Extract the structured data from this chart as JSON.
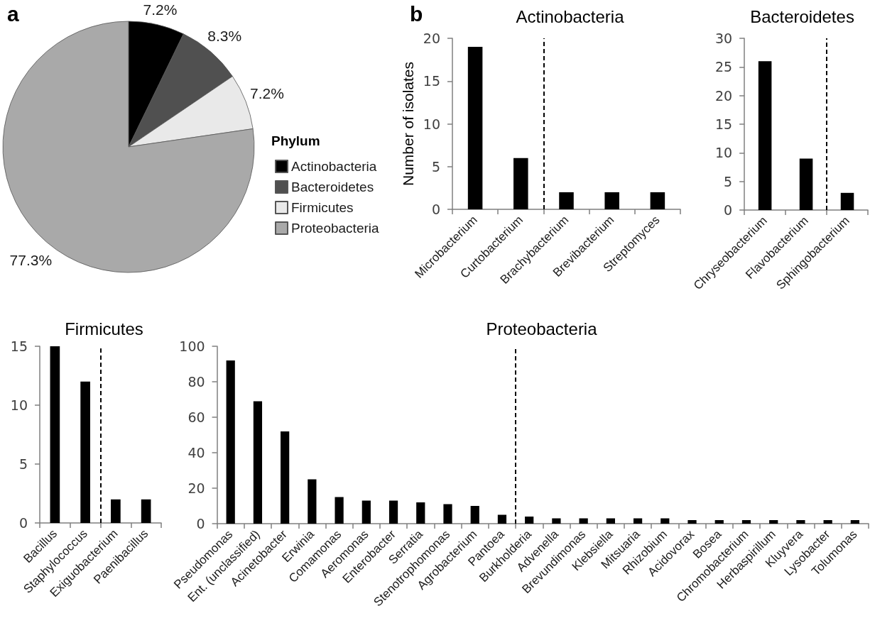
{
  "chart_data": [
    {
      "type": "pie",
      "categories": [
        "Actinobacteria",
        "Bacteroidetes",
        "Firmicutes",
        "Proteobacteria"
      ],
      "values": [
        7.2,
        8.3,
        7.2,
        77.3
      ],
      "colors": [
        "#000000",
        "#505050",
        "#e9e9e9",
        "#a9a9a9"
      ],
      "value_labels": [
        "7.2%",
        "8.3%",
        "7.2%",
        "77.3%"
      ],
      "legend": "right",
      "legend_title": "Phylum",
      "annotations": [
        "a"
      ]
    },
    {
      "type": "bar",
      "title": "Actinobacteria",
      "ylabel": "Number of isolates",
      "categories": [
        "Microbacterium",
        "Curtobacterium",
        "Brachybacterium",
        "Brevibacterium",
        "Streptomyces"
      ],
      "values": [
        19,
        6,
        2,
        2,
        2
      ],
      "color": "#000000",
      "ylim": [
        0,
        20
      ],
      "yticks": [
        0,
        5,
        10,
        15,
        20
      ],
      "grid": false,
      "annotations": [
        "b"
      ]
    },
    {
      "type": "bar",
      "title": "Bacteroidetes",
      "categories": [
        "Chryseobacterium",
        "Flavobacterium",
        "Sphingobacterium"
      ],
      "values": [
        26,
        9,
        3
      ],
      "color": "#000000",
      "ylim": [
        0,
        30
      ],
      "yticks": [
        0,
        5,
        10,
        15,
        20,
        25,
        30
      ],
      "grid": false
    },
    {
      "type": "bar",
      "title": "Firmicutes",
      "categories": [
        "Bacillus",
        "Staphylococcus",
        "Exiguobacterium",
        "Paenibacillus"
      ],
      "values": [
        15,
        12,
        2,
        2
      ],
      "color": "#000000",
      "ylim": [
        0,
        15
      ],
      "yticks": [
        0,
        5,
        10,
        15
      ],
      "grid": false
    },
    {
      "type": "bar",
      "title": "Proteobacteria",
      "categories": [
        "Pseudomonas",
        "Ent. (unclassified)",
        "Acinetobacter",
        "Erwinia",
        "Comamonas",
        "Aeromonas",
        "Enterobacter",
        "Serratia",
        "Stenotrophomonas",
        "Agrobacterium",
        "Pantoea",
        "Burkholderia",
        "Advenella",
        "Brevundimonas",
        "Klebsiella",
        "Mitsuaria",
        "Rhizobium",
        "Acidovorax",
        "Bosea",
        "Chromobacterium",
        "Herbaspirillum",
        "Kluyvera",
        "Lysobacter",
        "Tolumonas"
      ],
      "values": [
        92,
        69,
        52,
        25,
        15,
        13,
        13,
        12,
        11,
        10,
        5,
        4,
        3,
        3,
        3,
        3,
        3,
        2,
        2,
        2,
        2,
        2,
        2,
        2
      ],
      "color": "#000000",
      "ylim": [
        0,
        100
      ],
      "yticks": [
        0,
        20,
        40,
        60,
        80,
        100
      ],
      "grid": false
    }
  ]
}
